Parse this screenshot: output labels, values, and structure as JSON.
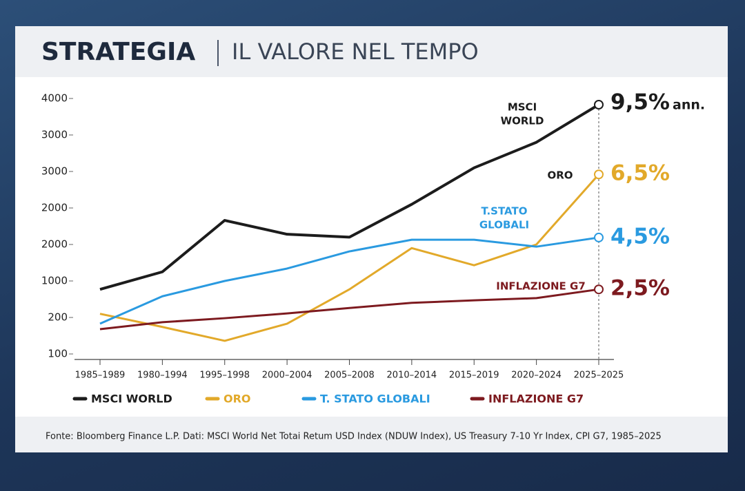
{
  "chart_data": {
    "type": "line",
    "title": "STRATEGIA",
    "subtitle": "IL VALORE NEL TEMPO",
    "categories": [
      "1985–1989",
      "1980–1994",
      "1995–1998",
      "2000–2004",
      "2005–2008",
      "2010–2014",
      "2015–2019",
      "2020–2024",
      "2025–2025"
    ],
    "ylim": [
      0,
      7.3
    ],
    "yticks": [
      {
        "value": 0,
        "label": "100"
      },
      {
        "value": 1,
        "label": "200"
      },
      {
        "value": 2,
        "label": "1000"
      },
      {
        "value": 3,
        "label": "2000"
      },
      {
        "value": 4,
        "label": "2000"
      },
      {
        "value": 5,
        "label": "3000"
      },
      {
        "value": 6,
        "label": "3000"
      },
      {
        "value": 7,
        "label": "4000"
      }
    ],
    "series": [
      {
        "name": "MSCI WORLD",
        "label": "MSCI WORLD",
        "color": "#1c1c1c",
        "return_label": "9,5%",
        "return_suffix": "ann.",
        "values": [
          1.77,
          2.25,
          3.66,
          3.28,
          3.2,
          4.1,
          5.1,
          5.8,
          6.83
        ]
      },
      {
        "name": "ORO",
        "label": "ORO",
        "color": "#e2a92a",
        "return_label": "6,5%",
        "values": [
          1.1,
          0.74,
          0.36,
          0.83,
          1.77,
          2.9,
          2.43,
          3.0,
          4.92
        ]
      },
      {
        "name": "T. STATO GLOBALI",
        "label": "T.STATO GLOBALI",
        "color": "#2a9ae0",
        "return_label": "4,5%",
        "values": [
          0.83,
          1.58,
          2.0,
          2.34,
          2.81,
          3.13,
          3.13,
          2.94,
          3.19
        ]
      },
      {
        "name": "INFLAZIONE G7",
        "label": "INFLAZIONE G7",
        "color": "#7d1a1f",
        "return_label": "2,5%",
        "values": [
          0.68,
          0.87,
          0.98,
          1.11,
          1.26,
          1.4,
          1.47,
          1.53,
          1.77
        ]
      }
    ],
    "source": "Fonte: Bloomberg Finance L.P. Dati: MSCI World Net Totai Retum USD Index (NDUW Index), US Treasury 7-10 Yr Index, CPI G7, 1985–2025"
  }
}
